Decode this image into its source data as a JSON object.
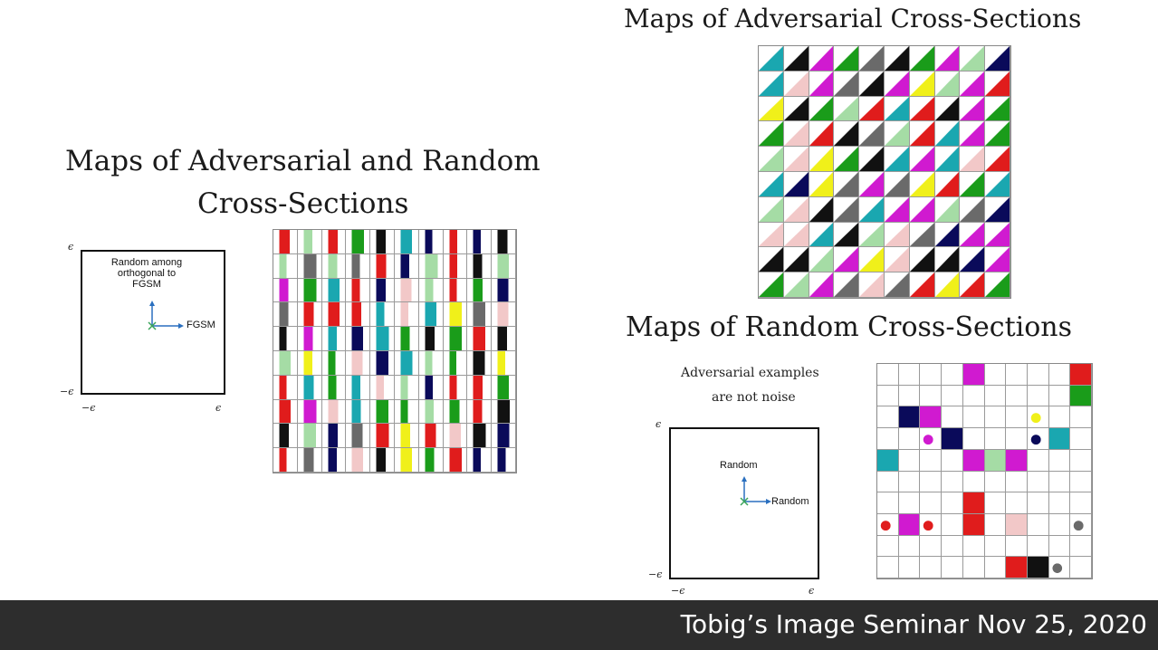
{
  "left_panel": {
    "title_line1": "Maps of Adversarial and Random",
    "title_line2": "Cross-Sections",
    "diagram": {
      "axis_label_top": "ϵ",
      "axis_label_bottom": "−ϵ",
      "axis_label_left": "−ϵ",
      "axis_label_right": "ϵ",
      "vertical_arrow_label": "Random among orthogonal to FGSM",
      "horizontal_arrow_label": "FGSM"
    }
  },
  "top_right_panel": {
    "title": "Maps of Adversarial Cross-Sections"
  },
  "bottom_right_panel": {
    "title": "Maps of Random Cross-Sections",
    "caption_line1": "Adversarial examples",
    "caption_line2": "are not noise",
    "diagram": {
      "axis_label_top": "ϵ",
      "axis_label_bottom": "−ϵ",
      "axis_label_left": "−ϵ",
      "axis_label_right": "ϵ",
      "vertical_arrow_label": "Random",
      "horizontal_arrow_label": "Random"
    }
  },
  "colors": {
    "green": "#1a9c1a",
    "light_green": "#a5dca5",
    "cyan": "#1aa7b0",
    "magenta": "#d01ad0",
    "red": "#e01c1c",
    "black": "#111111",
    "navy": "#0a0a5a",
    "pink": "#f2c8c8",
    "yellow": "#f0f01a",
    "gray": "#6a6a6a",
    "arrow_blue": "#2a6fbf"
  },
  "footer": {
    "text": "Tobig’s Image Seminar Nov 25, 2020"
  }
}
